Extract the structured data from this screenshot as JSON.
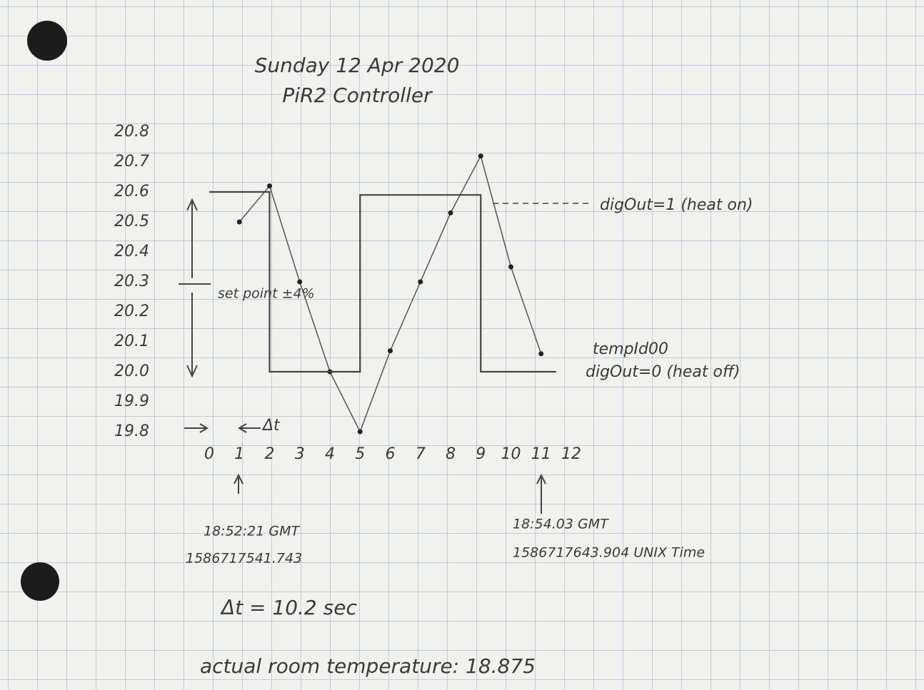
{
  "chart_data": {
    "type": "line",
    "title": "Sunday 12 Apr 2020",
    "subtitle": "PiR2 Controller",
    "x": [
      1,
      2,
      3,
      4,
      5,
      6,
      7,
      8,
      9,
      10,
      11
    ],
    "series": [
      {
        "name": "tempId00",
        "color": "#555555",
        "values": [
          20.5,
          20.62,
          20.3,
          20.0,
          19.8,
          20.07,
          20.3,
          20.53,
          20.72,
          20.35,
          20.06
        ]
      },
      {
        "color": "#444444",
        "x": [
          0,
          2,
          2,
          5,
          5,
          9,
          9,
          11.5
        ],
        "values": [
          20.6,
          20.6,
          20.0,
          20.0,
          20.59,
          20.59,
          20.0,
          20.0
        ]
      }
    ],
    "xlim": [
      0,
      12
    ],
    "ylim": [
      19.8,
      20.8
    ],
    "xticks": [
      0,
      1,
      2,
      3,
      4,
      5,
      6,
      7,
      8,
      9,
      10,
      11,
      12
    ],
    "yticks": [
      19.8,
      19.9,
      {
        "value": 20,
        "label": "20.0"
      },
      20.1,
      20.2,
      20.3,
      20.4,
      20.5,
      20.6,
      20.7,
      20.8
    ],
    "annotations": [
      "set point ±4%",
      "Δt",
      "digOut=1 (heat on)",
      "tempId00",
      "digOut=0 (heat off)",
      "18:52:21 GMT",
      "1586717541.743",
      "18:54.03 GMT",
      "1586717643.904 UNIX Time",
      "Δt = 10.2 sec",
      "actual room temperature: 18.875"
    ]
  }
}
